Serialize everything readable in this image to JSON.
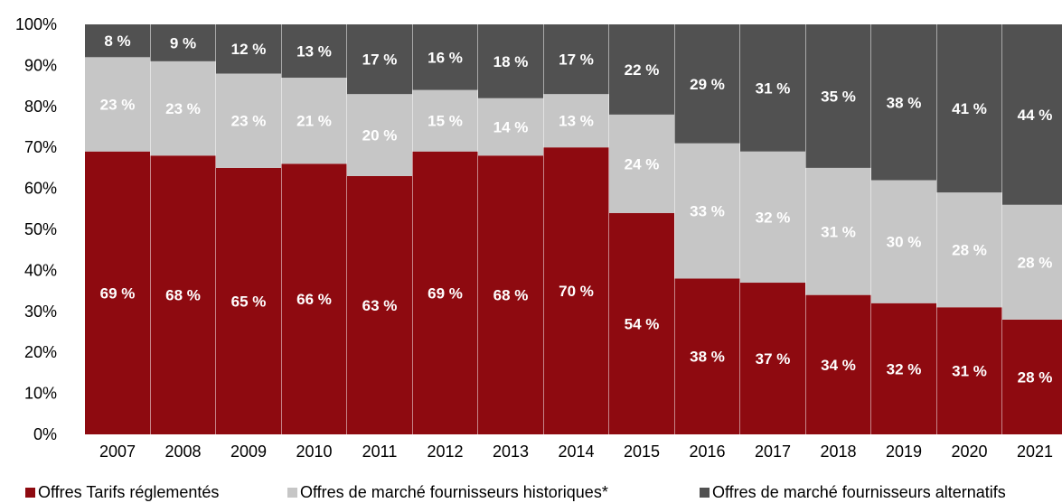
{
  "chart_data": {
    "type": "bar",
    "stacked": true,
    "categories": [
      "2007",
      "2008",
      "2009",
      "2010",
      "2011",
      "2012",
      "2013",
      "2014",
      "2015",
      "2016",
      "2017",
      "2018",
      "2019",
      "2020",
      "2021"
    ],
    "series": [
      {
        "name": "Offres Tarifs réglementés",
        "color": "#8e0a10",
        "values": [
          69,
          68,
          65,
          66,
          63,
          69,
          68,
          70,
          54,
          38,
          37,
          34,
          32,
          31,
          28
        ]
      },
      {
        "name": "Offres de marché fournisseurs historiques*",
        "color": "#c6c6c6",
        "values": [
          23,
          23,
          23,
          21,
          20,
          15,
          14,
          13,
          24,
          33,
          32,
          31,
          30,
          28,
          28
        ]
      },
      {
        "name": "Offres de marché fournisseurs alternatifs",
        "color": "#515151",
        "values": [
          8,
          9,
          12,
          13,
          17,
          16,
          18,
          17,
          22,
          29,
          31,
          35,
          38,
          41,
          44
        ]
      }
    ],
    "ylim": [
      0,
      100
    ],
    "yticks": [
      "0%",
      "10%",
      "20%",
      "30%",
      "40%",
      "50%",
      "60%",
      "70%",
      "80%",
      "90%",
      "100%"
    ],
    "value_suffix": " %",
    "legend_position": "bottom",
    "grid": false,
    "title": "",
    "xlabel": "",
    "ylabel": ""
  }
}
